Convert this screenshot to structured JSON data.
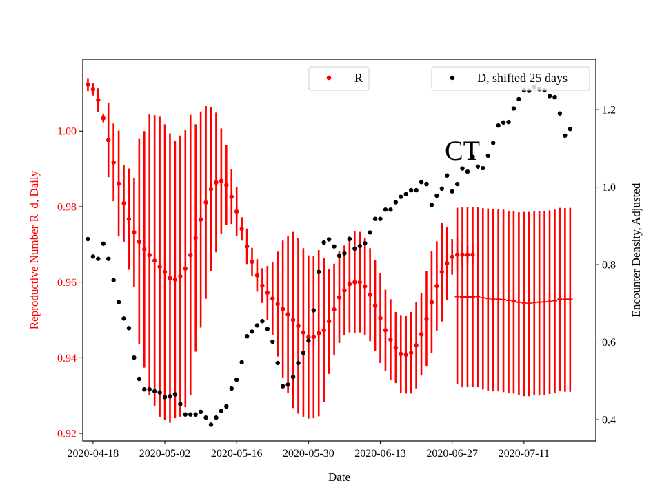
{
  "chart_data": {
    "type": "scatter",
    "xlabel": "Date",
    "ylabel_left": "Reproductive Number R_d, Daily",
    "ylabel_right": "Encounter Density, Adjusted",
    "annotation": "CT",
    "x_ticks": [
      "2020-04-18",
      "2020-05-02",
      "2020-05-16",
      "2020-05-30",
      "2020-06-13",
      "2020-06-27",
      "2020-07-11"
    ],
    "x_range": [
      "2020-04-16",
      "2020-07-25"
    ],
    "y_left": {
      "range": [
        0.918,
        1.019
      ],
      "ticks": [
        0.92,
        0.94,
        0.96,
        0.98,
        1.0
      ],
      "tick_labels": [
        "0.92",
        "0.94",
        "0.96",
        "0.98",
        "1.00"
      ]
    },
    "y_right": {
      "range": [
        0.345,
        1.33
      ],
      "ticks": [
        0.4,
        0.6,
        0.8,
        1.0,
        1.2
      ],
      "tick_labels": [
        "0.4",
        "0.6",
        "0.8",
        "1.0",
        "1.2"
      ]
    },
    "colors": {
      "r_series": "#ff0000",
      "d_series": "#000000",
      "left_axis_text": "#ff0000"
    },
    "legend_loc": "top, two separate boxes",
    "series": [
      {
        "name": "R",
        "axis": "left",
        "style": "points with vertical error bars",
        "start_date": "2020-04-17",
        "values": [
          1.0123,
          1.011,
          1.0082,
          1.0034,
          0.9976,
          0.9917,
          0.9861,
          0.9809,
          0.9767,
          0.9732,
          0.9707,
          0.9687,
          0.9672,
          0.9657,
          0.9641,
          0.9627,
          0.9611,
          0.9607,
          0.9616,
          0.9636,
          0.9672,
          0.9717,
          0.9766,
          0.9811,
          0.9846,
          0.9864,
          0.9868,
          0.9857,
          0.9826,
          0.9787,
          0.9741,
          0.9695,
          0.9654,
          0.9618,
          0.9591,
          0.9572,
          0.9557,
          0.9542,
          0.9529,
          0.9515,
          0.95,
          0.9484,
          0.9467,
          0.9455,
          0.9455,
          0.9465,
          0.9473,
          0.9496,
          0.9528,
          0.956,
          0.9578,
          0.9595,
          0.96,
          0.96,
          0.9589,
          0.9567,
          0.9538,
          0.9505,
          0.9473,
          0.9448,
          0.9427,
          0.941,
          0.9408,
          0.9413,
          0.9433,
          0.9462,
          0.9503,
          0.9547,
          0.959,
          0.9627,
          0.965,
          0.9667,
          0.9673,
          0.9673,
          0.9673,
          0.9673
        ],
        "error_low": [
          1.0106,
          1.0094,
          1.0051,
          1.0023,
          0.9878,
          0.9814,
          0.9721,
          0.9707,
          0.9633,
          0.9588,
          0.9435,
          0.9374,
          0.93,
          0.9272,
          0.9244,
          0.9236,
          0.9228,
          0.924,
          0.9244,
          0.9269,
          0.9301,
          0.9416,
          0.948,
          0.9556,
          0.9629,
          0.9679,
          0.9729,
          0.9751,
          0.9754,
          0.9723,
          0.971,
          0.9648,
          0.9617,
          0.9575,
          0.9545,
          0.9501,
          0.9461,
          0.9403,
          0.9348,
          0.9307,
          0.9267,
          0.9252,
          0.9244,
          0.9239,
          0.924,
          0.9245,
          0.9283,
          0.9357,
          0.9407,
          0.9439,
          0.9459,
          0.9467,
          0.9465,
          0.9467,
          0.946,
          0.9444,
          0.9418,
          0.9386,
          0.9366,
          0.9341,
          0.9333,
          0.9307,
          0.9305,
          0.9305,
          0.9319,
          0.9353,
          0.9377,
          0.9412,
          0.9472,
          0.9496,
          0.9553,
          0.962,
          0.9628,
          0.9642,
          0.965,
          0.9648
        ],
        "error_high": [
          1.014,
          1.0126,
          1.0113,
          1.0045,
          1.0074,
          1.002,
          1.0001,
          0.9911,
          0.9901,
          0.9876,
          0.9979,
          1.0,
          1.0044,
          1.0042,
          1.0038,
          1.0018,
          0.9994,
          0.9974,
          0.9988,
          1.0003,
          1.0043,
          1.0018,
          1.0052,
          1.0066,
          1.0063,
          1.0049,
          1.0007,
          0.9963,
          0.9898,
          0.9851,
          0.9772,
          0.9742,
          0.9691,
          0.9661,
          0.9637,
          0.9643,
          0.9653,
          0.9681,
          0.971,
          0.9723,
          0.9733,
          0.9716,
          0.969,
          0.9671,
          0.967,
          0.9685,
          0.9663,
          0.9635,
          0.9649,
          0.9681,
          0.9697,
          0.9723,
          0.9735,
          0.9733,
          0.9718,
          0.969,
          0.9658,
          0.9624,
          0.958,
          0.9555,
          0.9521,
          0.9513,
          0.9511,
          0.9521,
          0.9547,
          0.9571,
          0.9629,
          0.9682,
          0.9708,
          0.9758,
          0.9747,
          0.9714,
          0.9718,
          0.9704,
          0.9696,
          0.9698
        ]
      },
      {
        "name": "",
        "axis": "left",
        "style": "vertical error bars, small central tick",
        "start_date": "2020-06-28",
        "values": [
          0.9562,
          0.9561,
          0.9561,
          0.9561,
          0.9562,
          0.9559,
          0.9557,
          0.9555,
          0.9555,
          0.9554,
          0.9552,
          0.955,
          0.9547,
          0.9545,
          0.9544,
          0.9546,
          0.9547,
          0.9548,
          0.9549,
          0.9551,
          0.9555,
          0.9555,
          0.9555
        ],
        "error_low": [
          0.9331,
          0.9322,
          0.9322,
          0.9322,
          0.9322,
          0.9316,
          0.9313,
          0.9311,
          0.9311,
          0.9309,
          0.9306,
          0.9305,
          0.9302,
          0.9298,
          0.9298,
          0.93,
          0.93,
          0.9302,
          0.9304,
          0.9307,
          0.9312,
          0.931,
          0.931
        ],
        "error_high": [
          0.9797,
          0.9799,
          0.9799,
          0.9798,
          0.9799,
          0.9796,
          0.9795,
          0.9793,
          0.9793,
          0.9792,
          0.9789,
          0.9789,
          0.9785,
          0.9786,
          0.9786,
          0.9788,
          0.9788,
          0.9789,
          0.979,
          0.9792,
          0.9797,
          0.9796,
          0.9797
        ]
      },
      {
        "name": "D, shifted 25 days",
        "axis": "right",
        "style": "points",
        "start_date": "2020-04-17",
        "values": [
          0.866,
          0.821,
          0.815,
          0.854,
          0.815,
          0.76,
          0.703,
          0.661,
          0.636,
          0.56,
          0.505,
          0.478,
          0.478,
          0.473,
          0.47,
          0.458,
          0.46,
          0.465,
          0.44,
          0.413,
          0.413,
          0.413,
          0.42,
          0.405,
          0.387,
          0.405,
          0.422,
          0.434,
          0.48,
          0.503,
          0.548,
          0.615,
          0.627,
          0.643,
          0.654,
          0.634,
          0.601,
          0.546,
          0.486,
          0.49,
          0.51,
          0.546,
          0.572,
          0.604,
          0.682,
          0.781,
          0.857,
          0.865,
          0.847,
          0.823,
          0.829,
          0.866,
          0.841,
          0.848,
          0.855,
          0.883,
          0.918,
          0.918,
          0.942,
          0.942,
          0.961,
          0.975,
          0.982,
          0.992,
          0.992,
          1.013,
          1.008,
          0.954,
          0.978,
          0.996,
          1.03,
          0.989,
          1.008,
          1.048,
          1.04,
          1.078,
          1.053,
          1.049,
          1.081,
          1.114,
          1.159,
          1.167,
          1.168,
          1.203,
          1.227,
          1.25,
          1.249,
          1.259,
          1.253,
          1.25,
          1.235,
          1.232,
          1.19,
          1.133,
          1.15
        ]
      }
    ]
  }
}
